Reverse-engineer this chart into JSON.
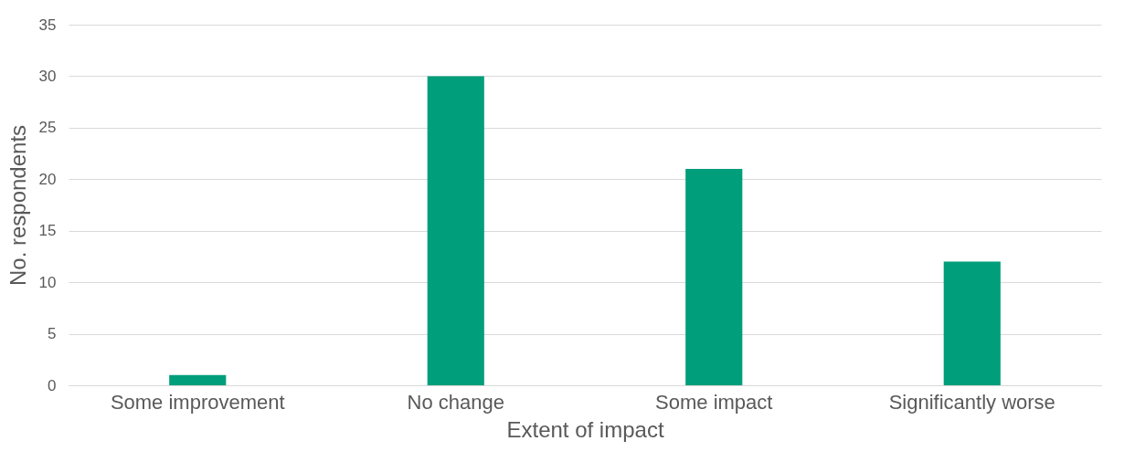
{
  "chart_data": {
    "type": "bar",
    "xlabel": "Extent of impact",
    "ylabel": "No. respondents",
    "categories": [
      "Some improvement",
      "No change",
      "Some impact",
      "Significantly worse"
    ],
    "values": [
      1,
      30,
      21,
      12
    ],
    "color": "#009e7a",
    "ylim": [
      0,
      35
    ],
    "yticks": [
      0,
      5,
      10,
      15,
      20,
      25,
      30,
      35
    ],
    "grid": "y"
  }
}
